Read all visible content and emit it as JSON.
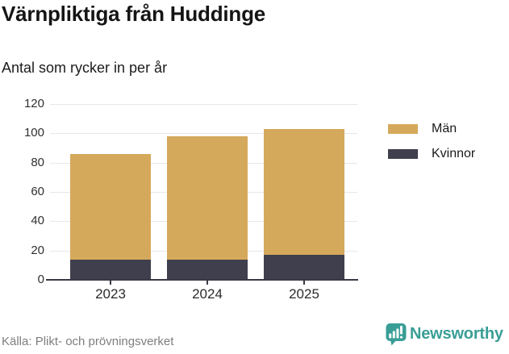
{
  "title": "Värnpliktiga från Huddinge",
  "subtitle": "Antal som rycker in per år",
  "source": "Källa: Plikt- och prövningsverket",
  "branding": {
    "name": "Newsworthy",
    "icon": "speech-bubble-bar-chart-exclamation-icon",
    "color": "#399e96"
  },
  "colors": {
    "men": "#d5a95c",
    "women": "#3f3f4d",
    "gridline": "#e7e7e7",
    "axis": "#3a3a46",
    "source_text": "#7e7e7e"
  },
  "chart_data": {
    "type": "bar",
    "stacked": true,
    "title": "Värnpliktiga från Huddinge",
    "subtitle": "Antal som rycker in per år",
    "categories": [
      "2023",
      "2024",
      "2025"
    ],
    "series": [
      {
        "name": "Kvinnor",
        "color": "#3f3f4d",
        "values": [
          14,
          14,
          17
        ]
      },
      {
        "name": "Män",
        "color": "#d5a95c",
        "values": [
          72,
          84,
          86
        ]
      }
    ],
    "totals": [
      86,
      98,
      103
    ],
    "y_ticks": [
      0,
      20,
      40,
      60,
      80,
      100,
      120
    ],
    "ylim": [
      0,
      120
    ],
    "xlabel": "",
    "ylabel": "",
    "grid": true,
    "legend": [
      "Män",
      "Kvinnor"
    ],
    "legend_position": "right"
  }
}
